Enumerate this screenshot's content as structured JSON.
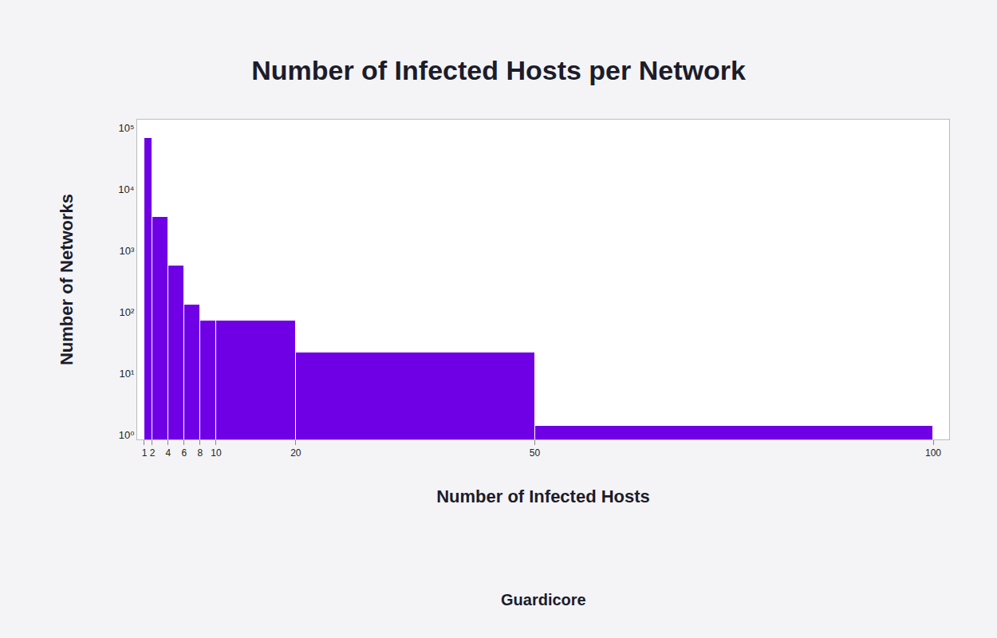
{
  "chart_data": {
    "type": "histogram",
    "title": "Number of Infected Hosts per Network",
    "x_label": "Number of Infected Hosts",
    "y_label": "Number of Networks",
    "bins": [
      1,
      2,
      4,
      6,
      8,
      10,
      20,
      50,
      100
    ],
    "values": [
      67000,
      3500,
      565,
      131,
      72,
      72,
      22,
      1.4
    ],
    "color": "#6f00e6",
    "log": "y",
    "grid": false,
    "xlim": [
      0.1,
      102
    ],
    "xticks": [
      1,
      2,
      4,
      6,
      8,
      10,
      20,
      50,
      100
    ],
    "ylim": [
      0.84,
      135000
    ],
    "yticks": [
      {
        "value": 1,
        "label": "10⁰"
      },
      {
        "value": 10,
        "label": "10¹"
      },
      {
        "value": 100,
        "label": "10²"
      },
      {
        "value": 1000,
        "label": "10³"
      },
      {
        "value": 10000,
        "label": "10⁴"
      },
      {
        "value": 100000,
        "label": "10⁵"
      }
    ],
    "annotations": [
      {
        "text": "Guardicore"
      }
    ]
  }
}
